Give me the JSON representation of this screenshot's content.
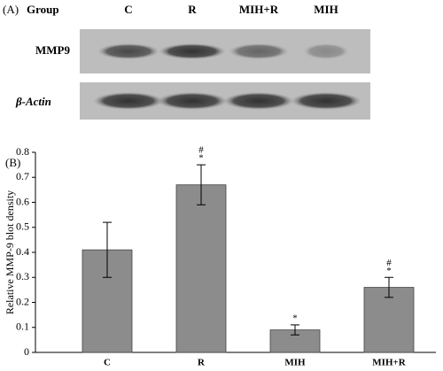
{
  "blot": {
    "panel_label": "(A)",
    "group_label": "Group",
    "lanes": [
      "C",
      "R",
      "MIH+R",
      "MIH"
    ],
    "rows": [
      "MMP9",
      "β-Actin"
    ]
  },
  "chart_data": {
    "type": "bar",
    "panel_label": "(B)",
    "y_label": "Relative MMP-9 blot density",
    "categories": [
      "C",
      "R",
      "MIH",
      "MIH+R"
    ],
    "values": [
      0.41,
      0.67,
      0.09,
      0.26
    ],
    "errors": [
      0.11,
      0.08,
      0.02,
      0.04
    ],
    "color": "#8c8c8c",
    "ylim": [
      0,
      0.8
    ],
    "yticks": [
      0,
      0.1,
      0.2,
      0.3,
      0.4,
      0.5,
      0.6,
      0.7,
      0.8
    ],
    "annotations": [
      {
        "category": "R",
        "text": [
          "#",
          "*"
        ]
      },
      {
        "category": "MIH",
        "text": [
          "*"
        ]
      },
      {
        "category": "MIH+R",
        "text": [
          "#",
          "*"
        ]
      }
    ]
  }
}
